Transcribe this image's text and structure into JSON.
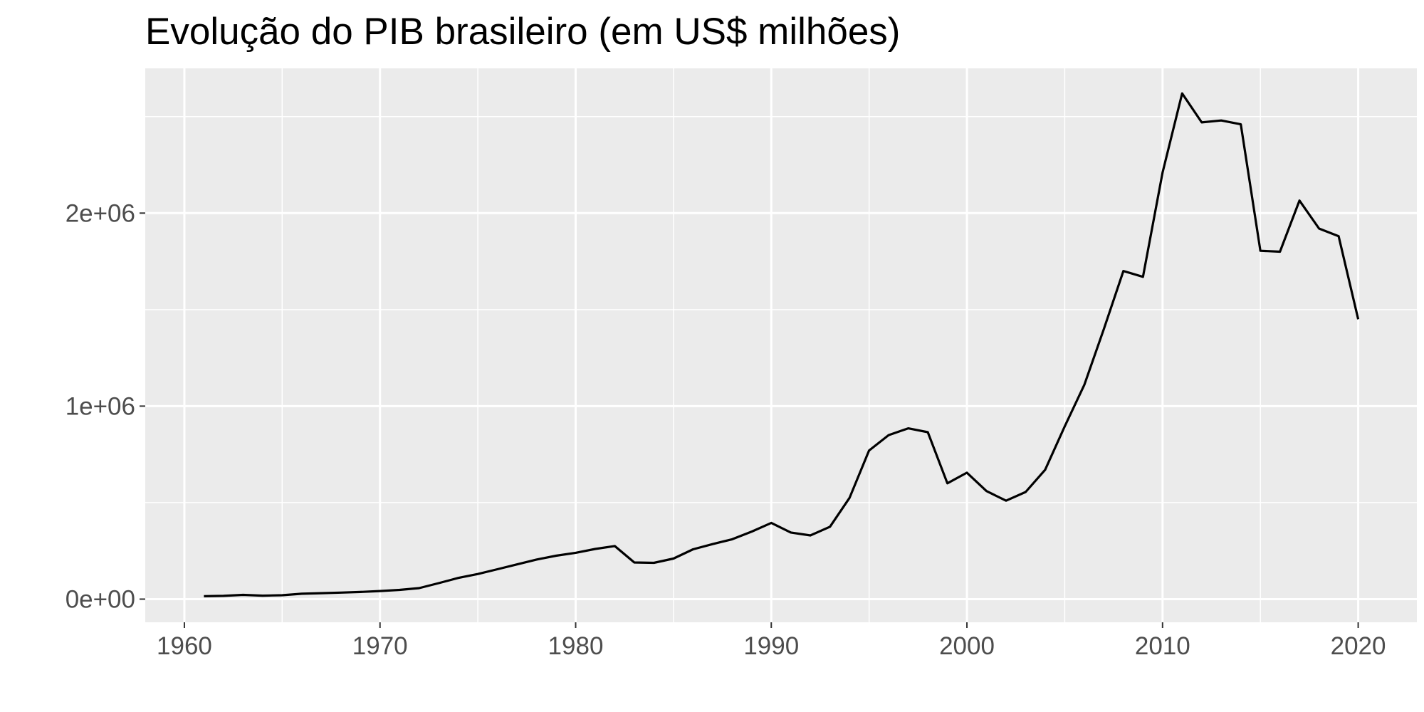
{
  "chart_data": {
    "type": "line",
    "title": "Evolução do PIB brasileiro (em US$ milhões)",
    "xlabel": "",
    "ylabel": "",
    "x_ticks": [
      1960,
      1970,
      1980,
      1990,
      2000,
      2010,
      2020
    ],
    "x_tick_labels": [
      "1960",
      "1970",
      "1980",
      "1990",
      "2000",
      "2010",
      "2020"
    ],
    "y_ticks": [
      0,
      1000000,
      2000000
    ],
    "y_tick_labels": [
      "0e+00",
      "1e+06",
      "2e+06"
    ],
    "xlim": [
      1958,
      2023
    ],
    "ylim": [
      -120000,
      2750000
    ],
    "grid": true,
    "legend": "none",
    "colors": {
      "panel": "#ebebeb",
      "grid": "#ffffff",
      "line": "#000000",
      "tick_label": "#4d4d4d",
      "tick": "#333333"
    },
    "x": [
      1961,
      1962,
      1963,
      1964,
      1965,
      1966,
      1967,
      1968,
      1969,
      1970,
      1971,
      1972,
      1973,
      1974,
      1975,
      1976,
      1977,
      1978,
      1979,
      1980,
      1981,
      1982,
      1983,
      1984,
      1985,
      1986,
      1987,
      1988,
      1989,
      1990,
      1991,
      1992,
      1993,
      1994,
      1995,
      1996,
      1997,
      1998,
      1999,
      2000,
      2001,
      2002,
      2003,
      2004,
      2005,
      2006,
      2007,
      2008,
      2009,
      2010,
      2011,
      2012,
      2013,
      2014,
      2015,
      2016,
      2017,
      2018,
      2019,
      2020
    ],
    "values": [
      15000,
      17000,
      22000,
      18000,
      20000,
      28000,
      31000,
      34000,
      37000,
      42000,
      48000,
      57000,
      83000,
      110000,
      130000,
      155000,
      180000,
      205000,
      225000,
      240000,
      260000,
      275000,
      190000,
      188000,
      210000,
      258000,
      285000,
      310000,
      350000,
      395000,
      345000,
      330000,
      375000,
      525000,
      770000,
      850000,
      885000,
      865000,
      600000,
      655000,
      560000,
      510000,
      555000,
      670000,
      895000,
      1110000,
      1400000,
      1700000,
      1670000,
      2210000,
      2620000,
      2470000,
      2480000,
      2460000,
      1805000,
      1800000,
      2065000,
      1920000,
      1880000,
      1450000
    ]
  }
}
